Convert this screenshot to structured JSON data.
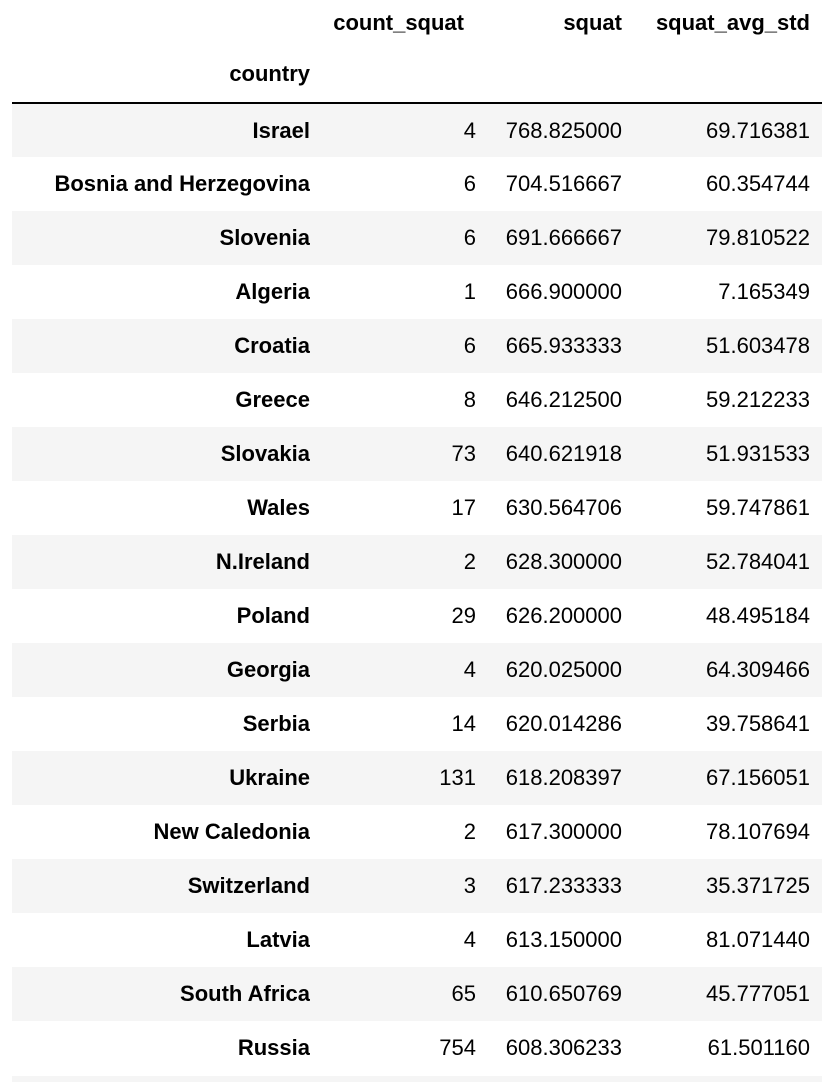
{
  "table": {
    "columns": [
      "count_squat",
      "squat",
      "squat_avg_std"
    ],
    "index_name": "country",
    "rows": [
      {
        "country": "Israel",
        "count_squat": "4",
        "squat": "768.825000",
        "squat_avg_std": "69.716381"
      },
      {
        "country": "Bosnia and Herzegovina",
        "count_squat": "6",
        "squat": "704.516667",
        "squat_avg_std": "60.354744"
      },
      {
        "country": "Slovenia",
        "count_squat": "6",
        "squat": "691.666667",
        "squat_avg_std": "79.810522"
      },
      {
        "country": "Algeria",
        "count_squat": "1",
        "squat": "666.900000",
        "squat_avg_std": "7.165349"
      },
      {
        "country": "Croatia",
        "count_squat": "6",
        "squat": "665.933333",
        "squat_avg_std": "51.603478"
      },
      {
        "country": "Greece",
        "count_squat": "8",
        "squat": "646.212500",
        "squat_avg_std": "59.212233"
      },
      {
        "country": "Slovakia",
        "count_squat": "73",
        "squat": "640.621918",
        "squat_avg_std": "51.931533"
      },
      {
        "country": "Wales",
        "count_squat": "17",
        "squat": "630.564706",
        "squat_avg_std": "59.747861"
      },
      {
        "country": "N.Ireland",
        "count_squat": "2",
        "squat": "628.300000",
        "squat_avg_std": "52.784041"
      },
      {
        "country": "Poland",
        "count_squat": "29",
        "squat": "626.200000",
        "squat_avg_std": "48.495184"
      },
      {
        "country": "Georgia",
        "count_squat": "4",
        "squat": "620.025000",
        "squat_avg_std": "64.309466"
      },
      {
        "country": "Serbia",
        "count_squat": "14",
        "squat": "620.014286",
        "squat_avg_std": "39.758641"
      },
      {
        "country": "Ukraine",
        "count_squat": "131",
        "squat": "618.208397",
        "squat_avg_std": "67.156051"
      },
      {
        "country": "New Caledonia",
        "count_squat": "2",
        "squat": "617.300000",
        "squat_avg_std": "78.107694"
      },
      {
        "country": "Switzerland",
        "count_squat": "3",
        "squat": "617.233333",
        "squat_avg_std": "35.371725"
      },
      {
        "country": "Latvia",
        "count_squat": "4",
        "squat": "613.150000",
        "squat_avg_std": "81.071440"
      },
      {
        "country": "South Africa",
        "count_squat": "65",
        "squat": "610.650769",
        "squat_avg_std": "45.777051"
      },
      {
        "country": "Russia",
        "count_squat": "754",
        "squat": "608.306233",
        "squat_avg_std": "61.501160"
      }
    ]
  },
  "colors": {
    "stripe": "#f5f5f5",
    "text": "#000000",
    "header_rule": "#000000"
  }
}
